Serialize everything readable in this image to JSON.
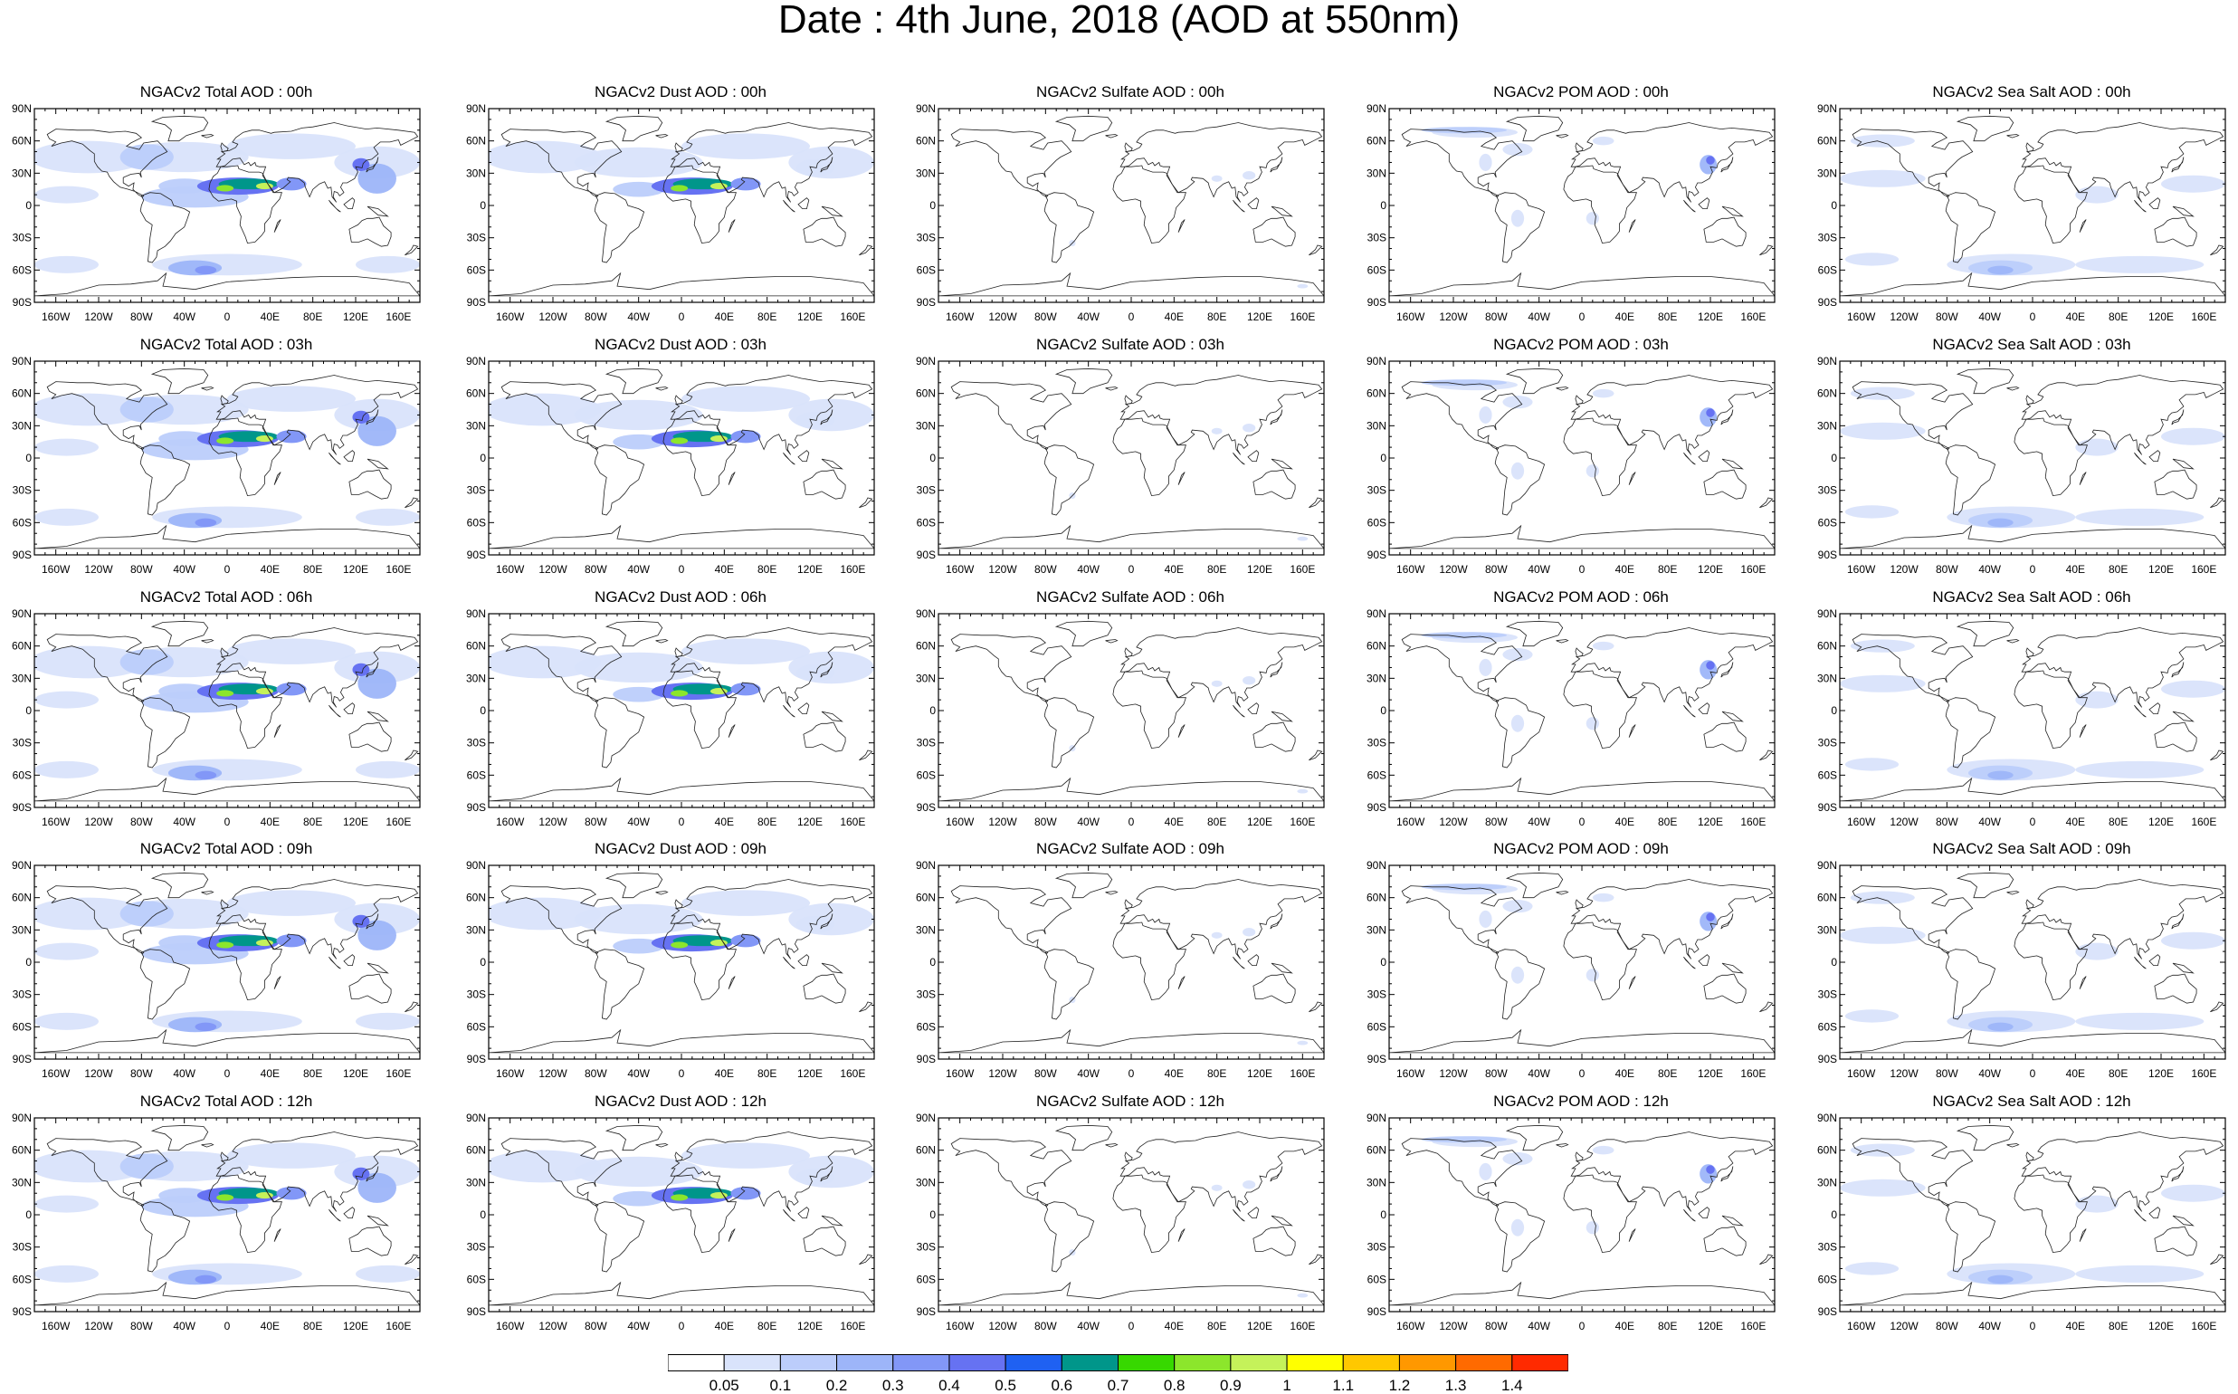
{
  "figure": {
    "title": "Date : 4th June, 2018 (AOD at 550nm)"
  },
  "map": {
    "lat_labels": [
      "90N",
      "60N",
      "30N",
      "0",
      "30S",
      "60S",
      "90S"
    ],
    "lon_labels": [
      "160W",
      "120W",
      "80W",
      "40W",
      "0",
      "40E",
      "80E",
      "120E",
      "160E"
    ]
  },
  "panels": [
    {
      "title": "NGACv2 Total AOD : 00h",
      "species": "total",
      "hour": "00h"
    },
    {
      "title": "NGACv2 Dust AOD : 00h",
      "species": "dust",
      "hour": "00h"
    },
    {
      "title": "NGACv2 Sulfate AOD : 00h",
      "species": "sulfate",
      "hour": "00h"
    },
    {
      "title": "NGACv2 POM AOD : 00h",
      "species": "pom",
      "hour": "00h"
    },
    {
      "title": "NGACv2 Sea Salt AOD : 00h",
      "species": "seasalt",
      "hour": "00h"
    },
    {
      "title": "NGACv2 Total AOD : 03h",
      "species": "total",
      "hour": "03h"
    },
    {
      "title": "NGACv2 Dust AOD : 03h",
      "species": "dust",
      "hour": "03h"
    },
    {
      "title": "NGACv2 Sulfate AOD : 03h",
      "species": "sulfate",
      "hour": "03h"
    },
    {
      "title": "NGACv2 POM AOD : 03h",
      "species": "pom",
      "hour": "03h"
    },
    {
      "title": "NGACv2 Sea Salt AOD : 03h",
      "species": "seasalt",
      "hour": "03h"
    },
    {
      "title": "NGACv2 Total AOD : 06h",
      "species": "total",
      "hour": "06h"
    },
    {
      "title": "NGACv2 Dust AOD : 06h",
      "species": "dust",
      "hour": "06h"
    },
    {
      "title": "NGACv2 Sulfate AOD : 06h",
      "species": "sulfate",
      "hour": "06h"
    },
    {
      "title": "NGACv2 POM AOD : 06h",
      "species": "pom",
      "hour": "06h"
    },
    {
      "title": "NGACv2 Sea Salt AOD : 06h",
      "species": "seasalt",
      "hour": "06h"
    },
    {
      "title": "NGACv2 Total AOD : 09h",
      "species": "total",
      "hour": "09h"
    },
    {
      "title": "NGACv2 Dust AOD : 09h",
      "species": "dust",
      "hour": "09h"
    },
    {
      "title": "NGACv2 Sulfate AOD : 09h",
      "species": "sulfate",
      "hour": "09h"
    },
    {
      "title": "NGACv2 POM AOD : 09h",
      "species": "pom",
      "hour": "09h"
    },
    {
      "title": "NGACv2 Sea Salt  AOD : 09h",
      "species": "seasalt",
      "hour": "09h"
    },
    {
      "title": "NGACv2 Total AOD  : 12h",
      "species": "total",
      "hour": "12h"
    },
    {
      "title": "NGACv2 Dust AOD : 12h",
      "species": "dust",
      "hour": "12h"
    },
    {
      "title": "NGACv2 Sulfate AOD : 12h",
      "species": "sulfate",
      "hour": "12h"
    },
    {
      "title": "NGACv2 POM  AOD : 12h",
      "species": "pom",
      "hour": "12h"
    },
    {
      "title": "NGACv2 Sea Salt  AOD : 12h",
      "species": "seasalt",
      "hour": "12h"
    }
  ],
  "colorbar": {
    "labels": [
      "0.05",
      "0.1",
      "0.2",
      "0.3",
      "0.4",
      "0.5",
      "0.6",
      "0.7",
      "0.8",
      "0.9",
      "1",
      "1.1",
      "1.2",
      "1.3",
      "1.4"
    ],
    "colors": [
      "#ffffff",
      "#d9e3fb",
      "#bccdfb",
      "#9db5f9",
      "#8297f7",
      "#6672f2",
      "#1f61f2",
      "#00968a",
      "#37d800",
      "#8ce62c",
      "#c5f25a",
      "#ffff00",
      "#ffc800",
      "#ff9800",
      "#ff6a00",
      "#ff2a00"
    ]
  }
}
